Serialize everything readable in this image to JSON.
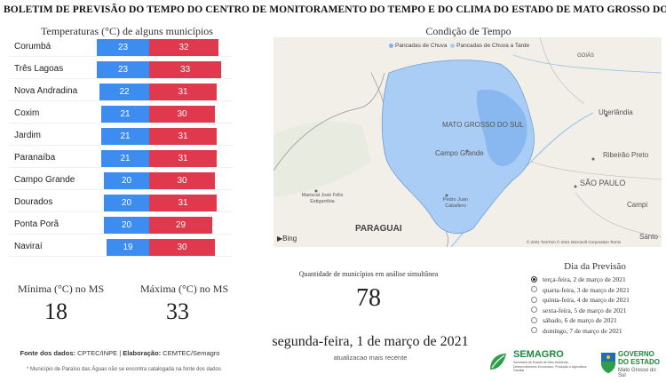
{
  "header": {
    "title": "BOLETIM DE PREVISÃO DO TEMPO DO CENTRO DE MONITORAMENTO DO TEMPO E DO CLIMA DO ESTADO DE MATO GROSSO DO SUL"
  },
  "temperatures": {
    "title": "Temperaturas (°C) de alguns municípios",
    "rows": [
      {
        "city": "Corumbá",
        "min": "23",
        "max": "32"
      },
      {
        "city": "Três Lagoas",
        "min": "23",
        "max": "33"
      },
      {
        "city": "Nova Andradina",
        "min": "22",
        "max": "31"
      },
      {
        "city": "Coxim",
        "min": "21",
        "max": "30"
      },
      {
        "city": "Jardim",
        "min": "21",
        "max": "31"
      },
      {
        "city": "Paranaíba",
        "min": "21",
        "max": "31"
      },
      {
        "city": "Campo Grande",
        "min": "20",
        "max": "30"
      },
      {
        "city": "Dourados",
        "min": "20",
        "max": "31"
      },
      {
        "city": "Ponta Porã",
        "min": "20",
        "max": "29"
      },
      {
        "city": "Naviraí",
        "min": "19",
        "max": "30"
      }
    ],
    "colors": {
      "min": "#3d8df0",
      "max": "#e0384c"
    }
  },
  "stats": {
    "min_label": "Mínima (°C) no MS",
    "min_value": "18",
    "max_label": "Máxima (°C) no MS",
    "max_value": "33"
  },
  "footer": {
    "fonte_label": "Fonte dos dados:",
    "fonte_value": "CPTEC/INPE",
    "elab_label": "Elaboração:",
    "elab_value": "CEMTEC/Semagro",
    "note": "* Município de Paraíso das Águas não se encontra catalogada na fonte dos dados"
  },
  "map": {
    "title": "Condição de Tempo",
    "legend": [
      {
        "label": "Pancadas de Chuva",
        "color": "#7fb3ee"
      },
      {
        "label": "Pancadas de Chuva a Tarde",
        "color": "#a9cdf4"
      }
    ],
    "labels": {
      "state": "MATO GROSSO DO SUL",
      "campo_grande": "Campo Grande",
      "uberlandia": "Uberlândia",
      "ribeirao": "Ribeirão Preto",
      "sao_paulo": "SÃO PAULO",
      "paraguai": "PARAGUAI",
      "mariscal": "Mariscal José Félix Estigarribia",
      "pedro_juan": "Pedro Juan Caballero",
      "goias": "GOIÁS",
      "campinas": "Campi",
      "santos": "Santo",
      "bing": "Bing",
      "copyright": "© 2021 TomTom  © 2021 Microsoft Corporation  Terms"
    }
  },
  "municipios": {
    "label": "Quantidade de municípios em análise simultânea",
    "value": "78"
  },
  "date": {
    "main": "segunda-feira, 1 de março de 2021",
    "sub": "atualizacao mais recente"
  },
  "forecast": {
    "title": "Dia da Previsão",
    "options": [
      {
        "label": "terça-feira, 2 de março de 2021",
        "checked": true
      },
      {
        "label": "quarta-feira, 3 de março de 2021",
        "checked": false
      },
      {
        "label": "quinta-feira, 4 de março de 2021",
        "checked": false
      },
      {
        "label": "sexta-feira, 5 de março de 2021",
        "checked": false
      },
      {
        "label": "sábado, 6 de março de 2021",
        "checked": false
      },
      {
        "label": "domingo, 7 de março de 2021",
        "checked": false
      }
    ]
  },
  "logos": {
    "semagro": "SEMAGRO",
    "semagro_sub": "Secretaria de Estado de Meio Ambiente, Desenvolvimento Econômico, Produção e Agricultura Familiar",
    "gov_line1": "GOVERNO",
    "gov_line2": "DO ESTADO",
    "gov_sub": "Mato Grosso do Sul"
  }
}
